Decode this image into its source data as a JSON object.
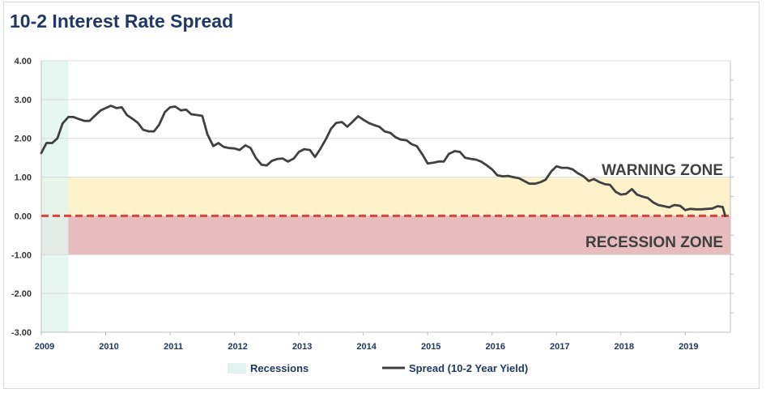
{
  "title": "10-2 Interest Rate Spread",
  "chart_data": {
    "type": "line",
    "title": "10-2 Interest Rate Spread",
    "xlim": [
      2009.0,
      2019.7
    ],
    "ylim": [
      -3.0,
      4.0
    ],
    "yticks": [
      4.0,
      3.0,
      2.0,
      1.0,
      0.0,
      -1.0,
      -2.0,
      -3.0
    ],
    "ytick_labels": [
      "4.00",
      "3.00",
      "2.00",
      "1.00",
      "0.00",
      "-1.00",
      "-2.00",
      "-3.00"
    ],
    "xticks": [
      2009,
      2010,
      2011,
      2012,
      2013,
      2014,
      2015,
      2016,
      2017,
      2018,
      2019
    ],
    "xtick_labels": [
      "2009",
      "2010",
      "2011",
      "2012",
      "2013",
      "2014",
      "2015",
      "2016",
      "2017",
      "2018",
      "2019"
    ],
    "grid": true,
    "legend_position": "bottom",
    "series": [
      {
        "name": "Spread (10-2 Year Yield)",
        "color": "#404040",
        "x": [
          2009.0,
          2009.08,
          2009.17,
          2009.25,
          2009.33,
          2009.42,
          2009.5,
          2009.58,
          2009.67,
          2009.75,
          2009.83,
          2009.92,
          2010.0,
          2010.08,
          2010.17,
          2010.25,
          2010.33,
          2010.42,
          2010.5,
          2010.58,
          2010.67,
          2010.75,
          2010.83,
          2010.92,
          2011.0,
          2011.08,
          2011.17,
          2011.25,
          2011.33,
          2011.42,
          2011.5,
          2011.58,
          2011.67,
          2011.75,
          2011.83,
          2011.92,
          2012.0,
          2012.08,
          2012.17,
          2012.25,
          2012.33,
          2012.42,
          2012.5,
          2012.58,
          2012.67,
          2012.75,
          2012.83,
          2012.92,
          2013.0,
          2013.08,
          2013.17,
          2013.25,
          2013.33,
          2013.42,
          2013.5,
          2013.58,
          2013.67,
          2013.75,
          2013.83,
          2013.92,
          2014.0,
          2014.08,
          2014.17,
          2014.25,
          2014.33,
          2014.42,
          2014.5,
          2014.58,
          2014.67,
          2014.75,
          2014.83,
          2014.92,
          2015.0,
          2015.08,
          2015.17,
          2015.25,
          2015.33,
          2015.42,
          2015.5,
          2015.58,
          2015.67,
          2015.75,
          2015.83,
          2015.92,
          2016.0,
          2016.08,
          2016.17,
          2016.25,
          2016.33,
          2016.42,
          2016.5,
          2016.58,
          2016.67,
          2016.75,
          2016.83,
          2016.92,
          2017.0,
          2017.08,
          2017.17,
          2017.25,
          2017.33,
          2017.42,
          2017.5,
          2017.58,
          2017.67,
          2017.75,
          2017.83,
          2017.92,
          2018.0,
          2018.08,
          2018.17,
          2018.25,
          2018.33,
          2018.42,
          2018.5,
          2018.58,
          2018.67,
          2018.75,
          2018.83,
          2018.92,
          2019.0,
          2019.08,
          2019.17,
          2019.25,
          2019.33,
          2019.42,
          2019.5,
          2019.58,
          2019.62
        ],
        "values": [
          1.62,
          1.88,
          1.88,
          2.0,
          2.38,
          2.55,
          2.55,
          2.5,
          2.45,
          2.45,
          2.58,
          2.72,
          2.78,
          2.84,
          2.78,
          2.8,
          2.6,
          2.5,
          2.4,
          2.22,
          2.18,
          2.18,
          2.35,
          2.68,
          2.8,
          2.82,
          2.72,
          2.74,
          2.62,
          2.6,
          2.58,
          2.1,
          1.8,
          1.88,
          1.78,
          1.75,
          1.74,
          1.7,
          1.82,
          1.75,
          1.5,
          1.32,
          1.3,
          1.42,
          1.47,
          1.48,
          1.4,
          1.48,
          1.65,
          1.72,
          1.7,
          1.52,
          1.72,
          1.98,
          2.25,
          2.4,
          2.42,
          2.3,
          2.42,
          2.57,
          2.48,
          2.4,
          2.34,
          2.3,
          2.18,
          2.14,
          2.03,
          1.97,
          1.95,
          1.85,
          1.8,
          1.58,
          1.35,
          1.37,
          1.4,
          1.4,
          1.6,
          1.67,
          1.65,
          1.5,
          1.47,
          1.45,
          1.4,
          1.3,
          1.2,
          1.05,
          1.02,
          1.03,
          1.0,
          0.97,
          0.9,
          0.83,
          0.83,
          0.87,
          0.93,
          1.15,
          1.28,
          1.24,
          1.24,
          1.2,
          1.1,
          1.02,
          0.9,
          0.95,
          0.87,
          0.82,
          0.8,
          0.62,
          0.55,
          0.57,
          0.69,
          0.55,
          0.5,
          0.46,
          0.35,
          0.28,
          0.25,
          0.22,
          0.28,
          0.26,
          0.15,
          0.18,
          0.17,
          0.17,
          0.18,
          0.19,
          0.25,
          0.23,
          0.0
        ]
      }
    ],
    "recession_band": {
      "name": "Recessions",
      "start": 2009.0,
      "end": 2009.42,
      "color": "#e2f4ef"
    },
    "zones": {
      "warning": {
        "label": "WARNING ZONE",
        "from": 0.0,
        "to": 1.0,
        "color": "#fdf2cc"
      },
      "recession": {
        "label": "RECESSION ZONE",
        "from": -1.0,
        "to": 0.0,
        "color": "#e7bcbc"
      }
    },
    "zero_line_color": "#d9453a"
  },
  "legend": {
    "recessions_label": "Recessions",
    "spread_label": "Spread (10-2 Year Yield)"
  }
}
